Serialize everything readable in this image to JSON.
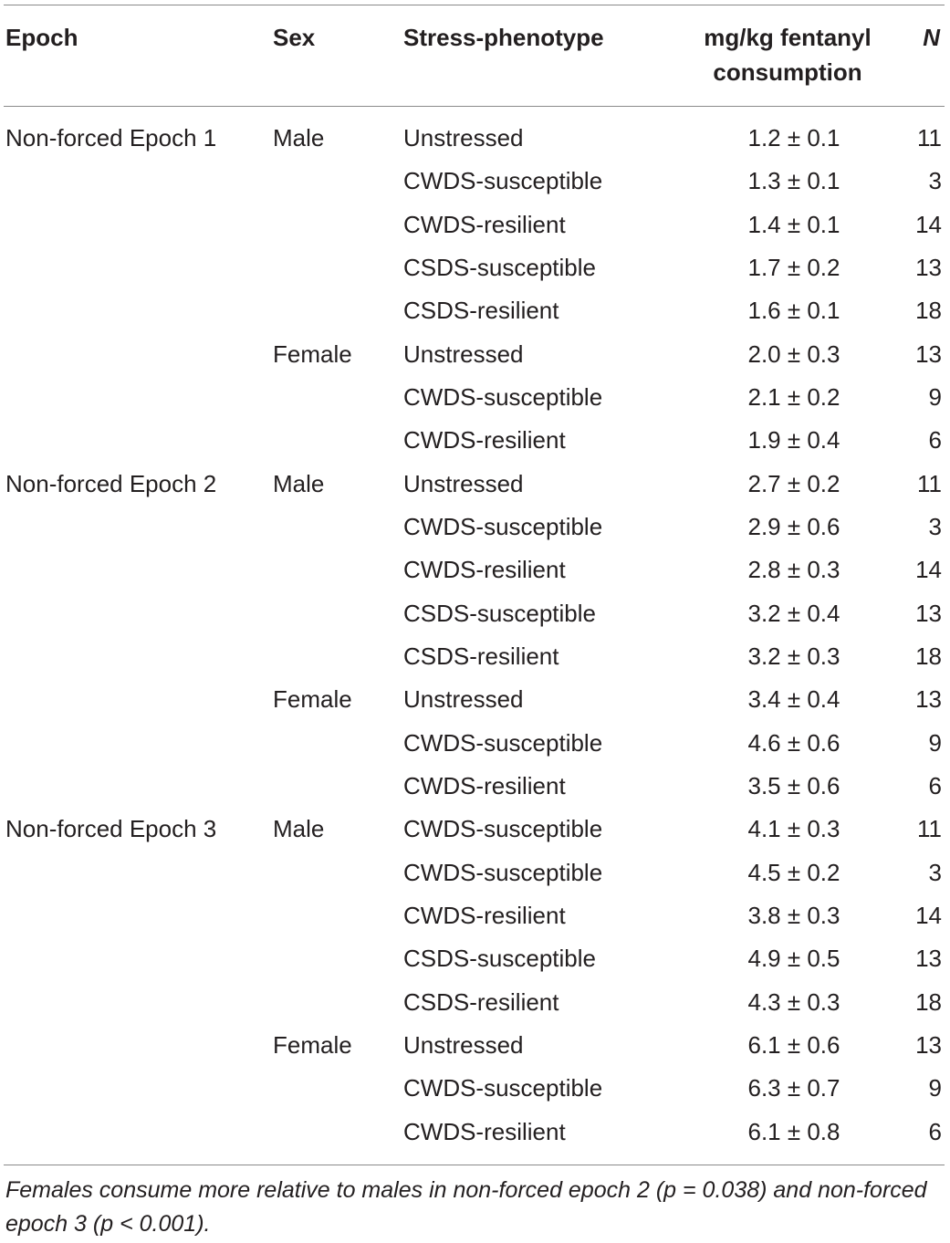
{
  "table": {
    "headers": {
      "epoch": "Epoch",
      "sex": "Sex",
      "stress": "Stress-phenotype",
      "mg_line1": "mg/kg fentanyl",
      "mg_line2": "consumption",
      "n": "N"
    },
    "rows": [
      {
        "epoch": "Non-forced Epoch 1",
        "sex": "Male",
        "stress": "Unstressed",
        "value": "1.2 ± 0.1",
        "n": "11"
      },
      {
        "epoch": "",
        "sex": "",
        "stress": "CWDS-susceptible",
        "value": "1.3 ± 0.1",
        "n": "3"
      },
      {
        "epoch": "",
        "sex": "",
        "stress": "CWDS-resilient",
        "value": "1.4 ± 0.1",
        "n": "14"
      },
      {
        "epoch": "",
        "sex": "",
        "stress": "CSDS-susceptible",
        "value": "1.7 ± 0.2",
        "n": "13"
      },
      {
        "epoch": "",
        "sex": "",
        "stress": "CSDS-resilient",
        "value": "1.6 ± 0.1",
        "n": "18"
      },
      {
        "epoch": "",
        "sex": "Female",
        "stress": "Unstressed",
        "value": "2.0 ± 0.3",
        "n": "13"
      },
      {
        "epoch": "",
        "sex": "",
        "stress": "CWDS-susceptible",
        "value": "2.1 ± 0.2",
        "n": "9"
      },
      {
        "epoch": "",
        "sex": "",
        "stress": "CWDS-resilient",
        "value": "1.9 ± 0.4",
        "n": "6"
      },
      {
        "epoch": "Non-forced Epoch 2",
        "sex": "Male",
        "stress": "Unstressed",
        "value": "2.7 ± 0.2",
        "n": "11"
      },
      {
        "epoch": "",
        "sex": "",
        "stress": "CWDS-susceptible",
        "value": "2.9 ± 0.6",
        "n": "3"
      },
      {
        "epoch": "",
        "sex": "",
        "stress": "CWDS-resilient",
        "value": "2.8 ± 0.3",
        "n": "14"
      },
      {
        "epoch": "",
        "sex": "",
        "stress": "CSDS-susceptible",
        "value": "3.2 ± 0.4",
        "n": "13"
      },
      {
        "epoch": "",
        "sex": "",
        "stress": "CSDS-resilient",
        "value": "3.2 ± 0.3",
        "n": "18"
      },
      {
        "epoch": "",
        "sex": "Female",
        "stress": "Unstressed",
        "value": "3.4 ± 0.4",
        "n": "13"
      },
      {
        "epoch": "",
        "sex": "",
        "stress": "CWDS-susceptible",
        "value": "4.6 ± 0.6",
        "n": "9"
      },
      {
        "epoch": "",
        "sex": "",
        "stress": "CWDS-resilient",
        "value": "3.5 ± 0.6",
        "n": "6"
      },
      {
        "epoch": "Non-forced Epoch 3",
        "sex": "Male",
        "stress": "CWDS-susceptible",
        "value": "4.1 ± 0.3",
        "n": "11"
      },
      {
        "epoch": "",
        "sex": "",
        "stress": "CWDS-susceptible",
        "value": "4.5 ± 0.2",
        "n": "3"
      },
      {
        "epoch": "",
        "sex": "",
        "stress": "CWDS-resilient",
        "value": "3.8 ± 0.3",
        "n": "14"
      },
      {
        "epoch": "",
        "sex": "",
        "stress": "CSDS-susceptible",
        "value": "4.9 ± 0.5",
        "n": "13"
      },
      {
        "epoch": "",
        "sex": "",
        "stress": "CSDS-resilient",
        "value": "4.3 ± 0.3",
        "n": "18"
      },
      {
        "epoch": "",
        "sex": "Female",
        "stress": "Unstressed",
        "value": "6.1 ± 0.6",
        "n": "13"
      },
      {
        "epoch": "",
        "sex": "",
        "stress": "CWDS-susceptible",
        "value": "6.3 ± 0.7",
        "n": "9"
      },
      {
        "epoch": "",
        "sex": "",
        "stress": "CWDS-resilient",
        "value": "6.1 ± 0.8",
        "n": "6"
      }
    ],
    "footnote": "Females consume more relative to males in non-forced epoch 2 (p = 0.038) and non-forced epoch 3 (p < 0.001)."
  }
}
